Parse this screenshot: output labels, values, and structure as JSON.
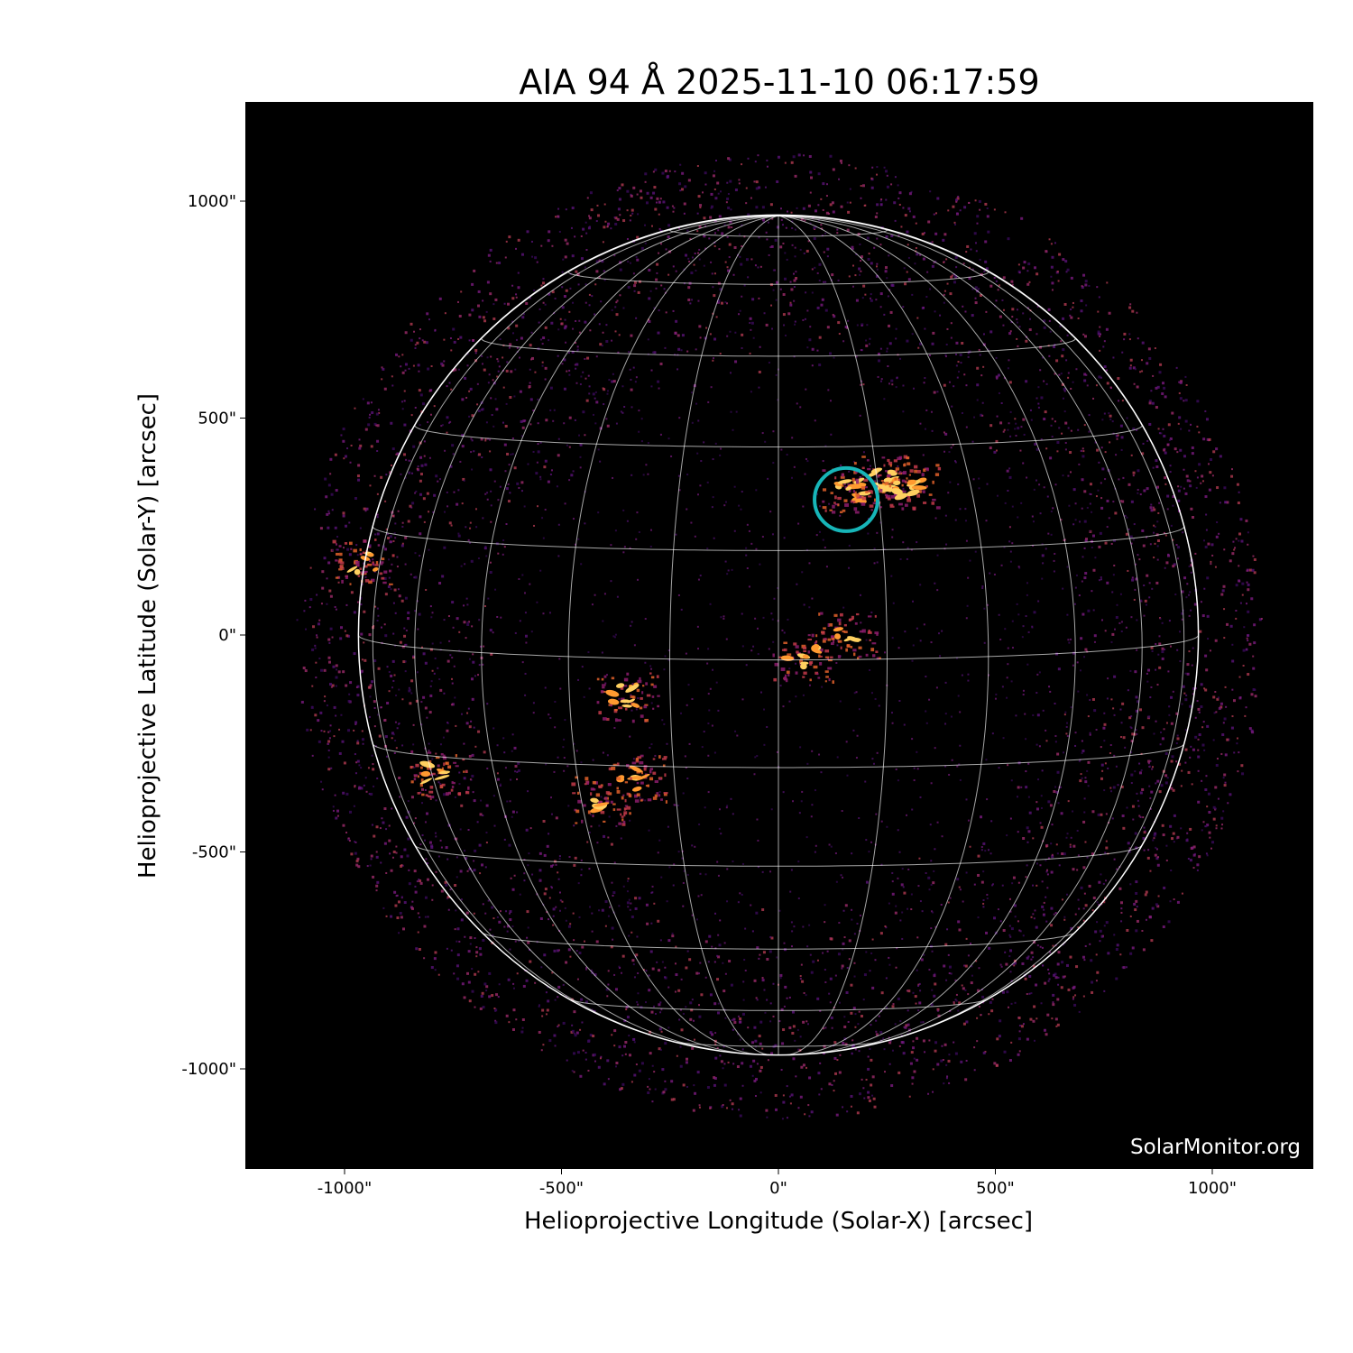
{
  "chart_data": {
    "type": "heatmap",
    "title": "AIA 94 Å 2025-11-10 06:17:59",
    "xlabel": "Helioprojective Longitude (Solar-X) [arcsec]",
    "ylabel": "Helioprojective Latitude (Solar-Y) [arcsec]",
    "xlim": [
      -1230,
      1230
    ],
    "ylim": [
      -1230,
      1230
    ],
    "x_ticks": [
      -1000,
      -500,
      0,
      500,
      1000
    ],
    "x_tick_labels": [
      "-1000\"",
      "-500\"",
      "0\"",
      "500\"",
      "1000\""
    ],
    "y_ticks": [
      1000,
      500,
      0,
      -500,
      -1000
    ],
    "y_tick_labels": [
      "1000\"",
      "500\"",
      "0\"",
      "-500\"",
      "-1000\""
    ],
    "solar_radius_arcsec": 968,
    "b0_deg": 3.4,
    "grid_spacing_deg": 15,
    "colormap": "sdoaia94",
    "highlight_circle": {
      "x": 156,
      "y": 312,
      "r": 75,
      "color": "#17b5b8"
    },
    "bright_regions": [
      {
        "x": 170,
        "y": 335,
        "intensity": 1.0
      },
      {
        "x": 235,
        "y": 360,
        "intensity": 0.9
      },
      {
        "x": 300,
        "y": 340,
        "intensity": 0.8
      },
      {
        "x": -350,
        "y": -140,
        "intensity": 0.8
      },
      {
        "x": -330,
        "y": -330,
        "intensity": 0.6
      },
      {
        "x": -410,
        "y": -380,
        "intensity": 0.5
      },
      {
        "x": -780,
        "y": -320,
        "intensity": 0.5
      },
      {
        "x": -960,
        "y": 170,
        "intensity": 0.5
      },
      {
        "x": 55,
        "y": -50,
        "intensity": 0.7
      },
      {
        "x": 160,
        "y": 0,
        "intensity": 0.4
      }
    ],
    "watermark": "SolarMonitor.org"
  }
}
